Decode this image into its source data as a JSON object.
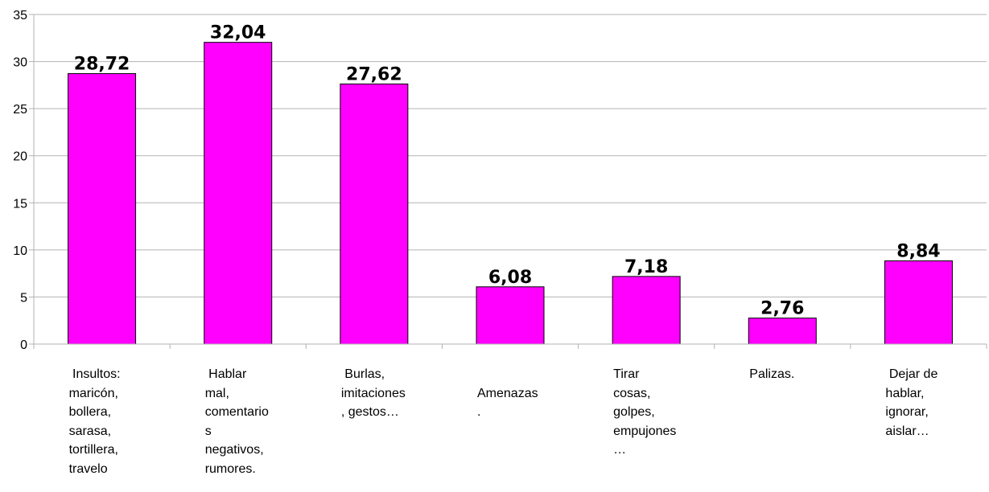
{
  "chart_data": {
    "type": "bar",
    "categories": [
      " Insultos:\nmaricón,\nbollera,\nsarasa,\ntortillera,\ntravelo",
      " Hablar\nmal,\ncomentario\ns\nnegativos,\nrumores.",
      " Burlas,\nimitaciones\n, gestos…",
      "\nAmenazas\n.",
      "Tirar\ncosas,\ngolpes,\nempujones\n…",
      "Palizas.",
      " Dejar de\nhablar,\nignorar,\naislar…"
    ],
    "values": [
      28.72,
      32.04,
      27.62,
      6.08,
      7.18,
      2.76,
      8.84
    ],
    "data_labels": [
      "28,72",
      "32,04",
      "27,62",
      "6,08",
      "7,18",
      "2,76",
      "8,84"
    ],
    "y_ticks": [
      0,
      5,
      10,
      15,
      20,
      25,
      30,
      35
    ],
    "ylim": [
      0,
      35
    ],
    "grid": true,
    "bar_color": "#ff00ff",
    "title": "",
    "xlabel": "",
    "ylabel": ""
  }
}
